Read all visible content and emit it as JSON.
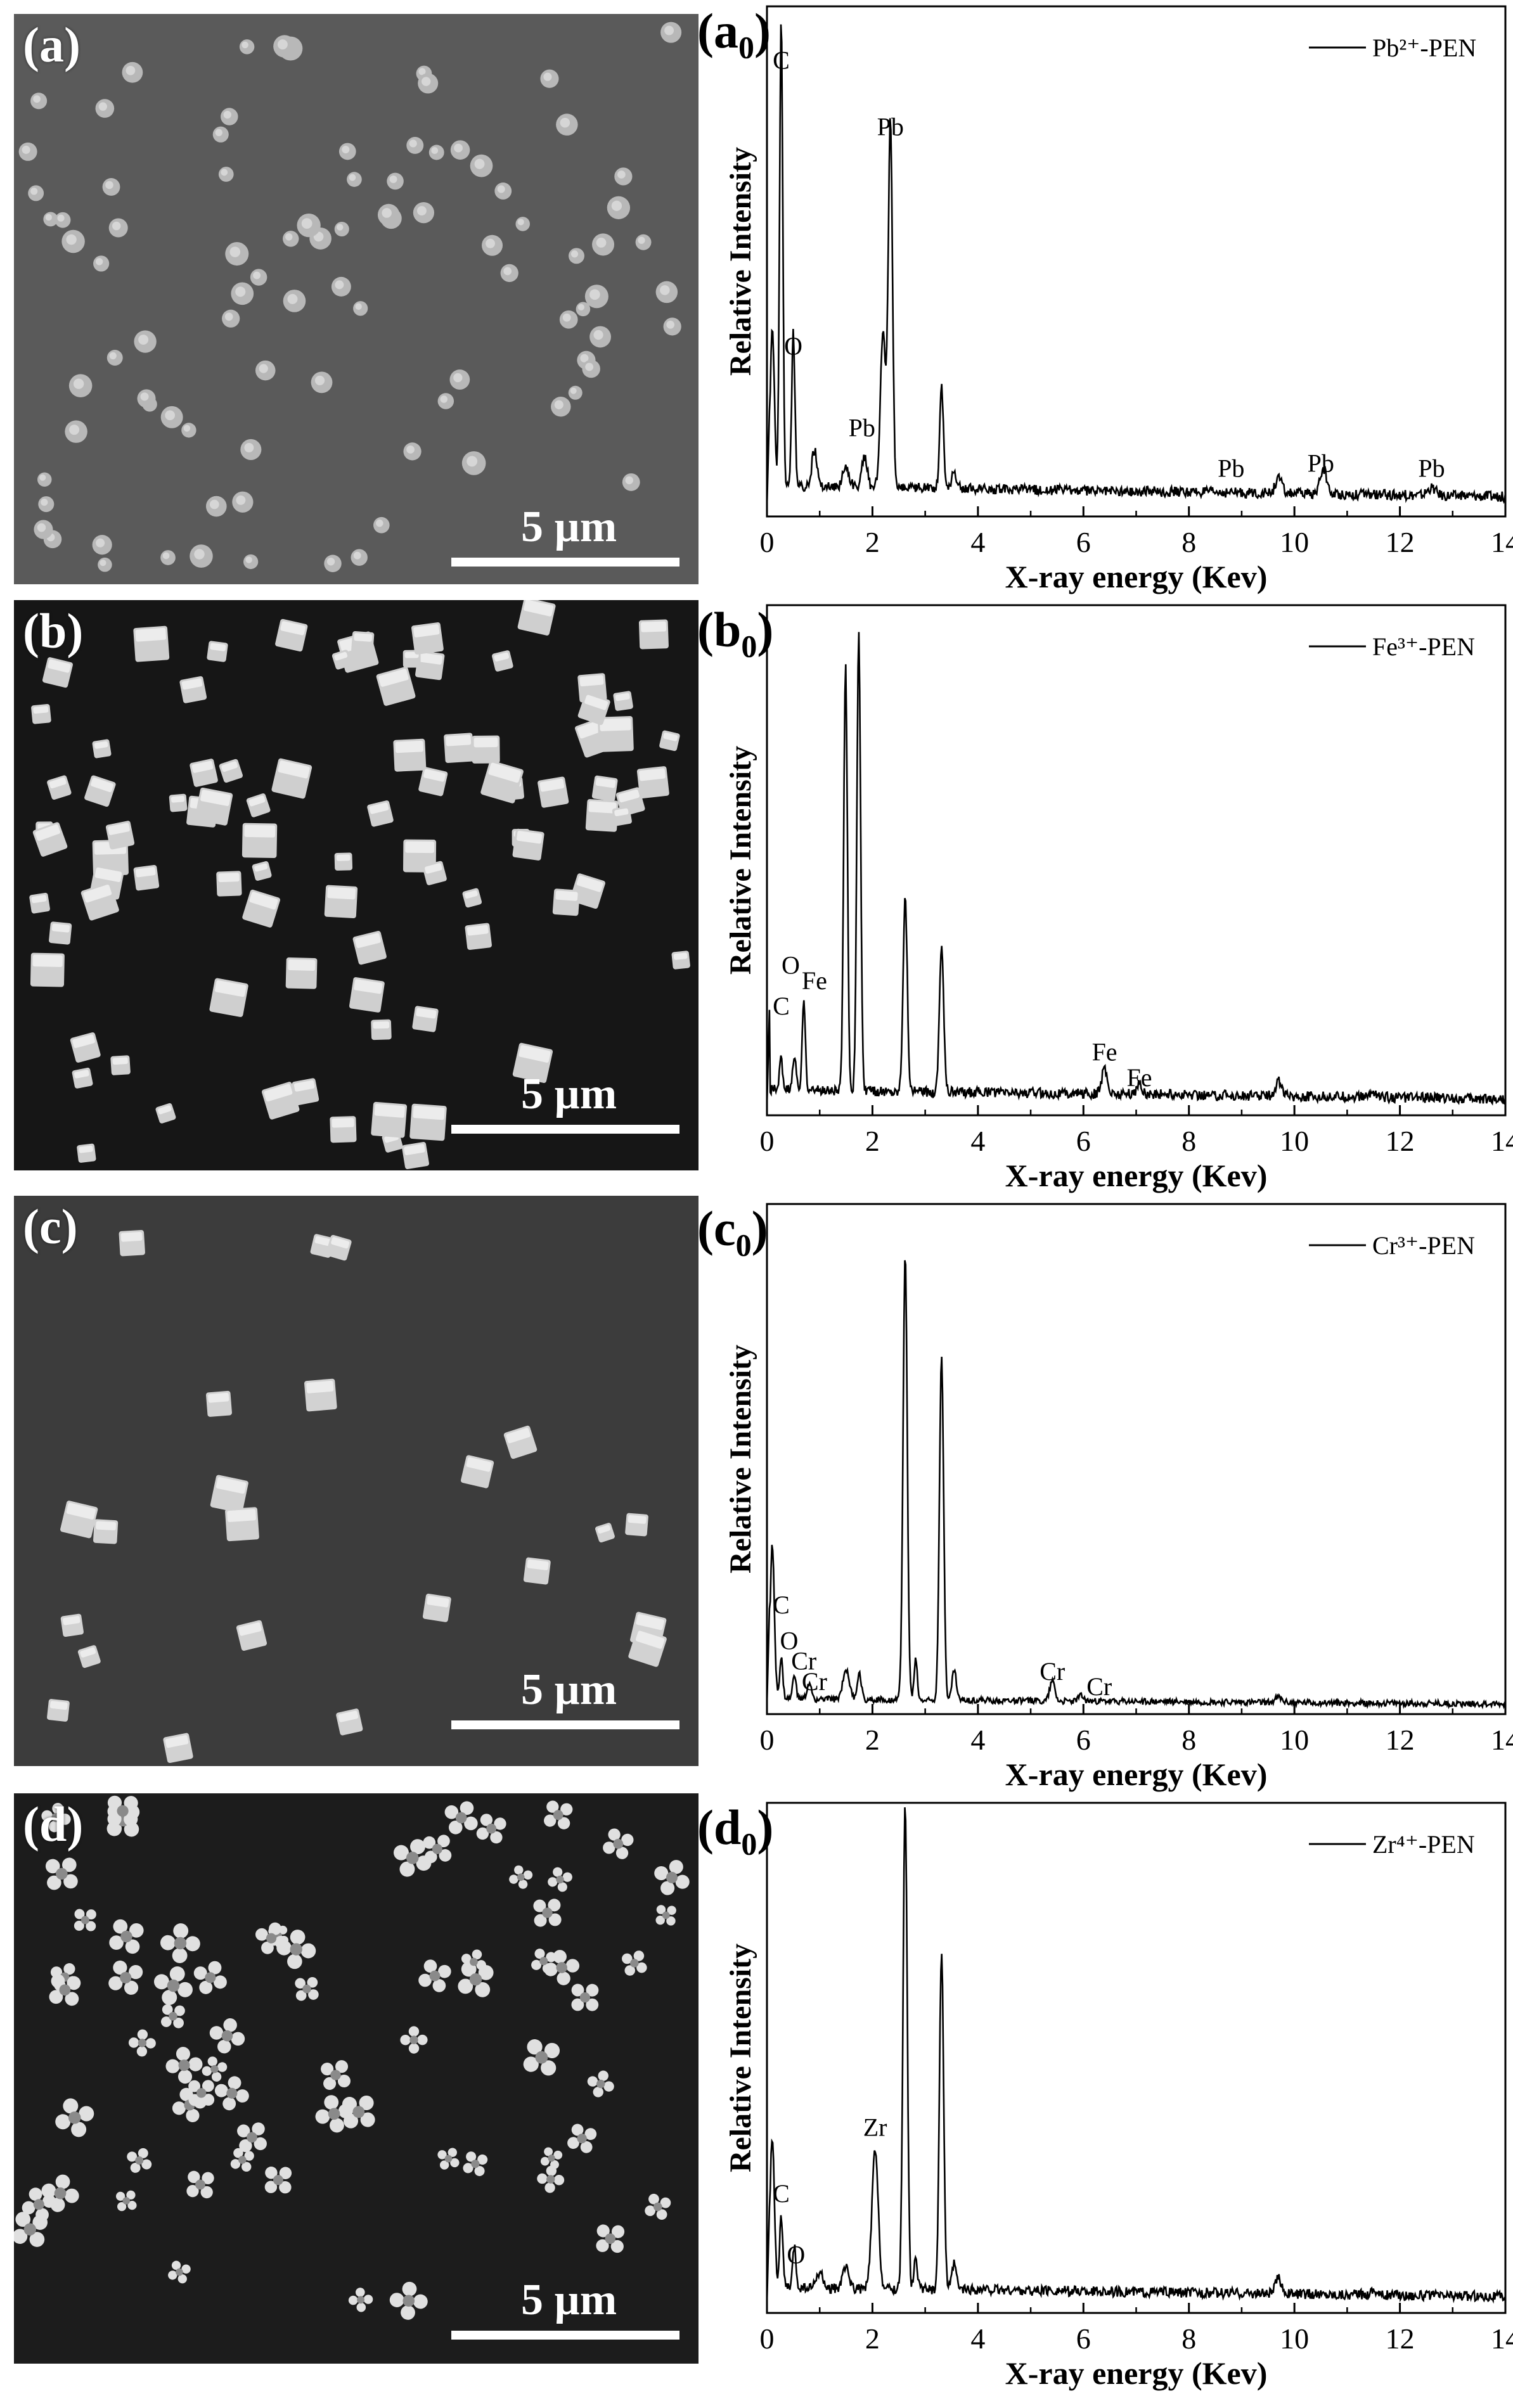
{
  "sem_panels": [
    {
      "id": "a",
      "label": "(a)",
      "scale": "5 µm",
      "particle": "sphere",
      "bg": "#5a5a5a",
      "fg": "#b8b8b8",
      "count": 95
    },
    {
      "id": "b",
      "label": "(b)",
      "scale": "5 µm",
      "particle": "cube",
      "bg": "#161616",
      "fg": "#cfcfcf",
      "count": 95
    },
    {
      "id": "c",
      "label": "(c)",
      "scale": "5 µm",
      "particle": "cube",
      "bg": "#3c3c3c",
      "fg": "#d2d2d2",
      "count": 24
    },
    {
      "id": "d",
      "label": "(d)",
      "scale": "5 µm",
      "particle": "star",
      "bg": "#1c1c1c",
      "fg": "#e0e0e0",
      "count": 70
    }
  ],
  "chart_data": [
    {
      "type": "line",
      "panel_label": "(a",
      "panel_sub": "0",
      "panel_close": ")",
      "xlabel": "X-ray energy (Kev)",
      "ylabel": "Relative Intensity",
      "xlim": [
        0,
        14
      ],
      "xticks": [
        "0",
        "2",
        "4",
        "6",
        "8",
        "10",
        "12",
        "14"
      ],
      "legend": "Pb²⁺-PEN",
      "legend_position": "top-right",
      "baseline": 0.06,
      "peaks": [
        [
          0.1,
          0.3,
          0.04
        ],
        [
          0.27,
          0.92,
          0.03
        ],
        [
          0.5,
          0.3,
          0.03
        ],
        [
          0.9,
          0.07,
          0.05
        ],
        [
          1.5,
          0.04,
          0.06
        ],
        [
          1.85,
          0.06,
          0.05
        ],
        [
          2.2,
          0.3,
          0.05
        ],
        [
          2.34,
          0.72,
          0.04
        ],
        [
          3.31,
          0.2,
          0.035
        ],
        [
          3.55,
          0.03,
          0.05
        ],
        [
          9.7,
          0.03,
          0.06
        ],
        [
          10.55,
          0.05,
          0.06
        ],
        [
          12.6,
          0.015,
          0.08
        ]
      ],
      "noise": 0.01,
      "annotations": [
        {
          "text": "C",
          "x": 0.27,
          "y": 0.86
        },
        {
          "text": "O",
          "x": 0.5,
          "y": 0.3
        },
        {
          "text": "Pb",
          "x": 2.34,
          "y": 0.73
        },
        {
          "text": "Pb",
          "x": 1.8,
          "y": 0.14
        },
        {
          "text": "Pb",
          "x": 8.8,
          "y": 0.06
        },
        {
          "text": "Pb",
          "x": 10.5,
          "y": 0.07
        },
        {
          "text": "Pb",
          "x": 12.6,
          "y": 0.06
        }
      ]
    },
    {
      "type": "line",
      "panel_label": "(b",
      "panel_sub": "0",
      "panel_close": ")",
      "xlabel": "X-ray energy (Kev)",
      "ylabel": "Relative Intensity",
      "xlim": [
        0,
        14
      ],
      "xticks": [
        "0",
        "2",
        "4",
        "6",
        "8",
        "10",
        "12",
        "14"
      ],
      "legend": "Fe³⁺-PEN",
      "legend_position": "top-right",
      "baseline": 0.05,
      "peaks": [
        [
          0.27,
          0.06,
          0.03
        ],
        [
          0.52,
          0.07,
          0.03
        ],
        [
          0.7,
          0.18,
          0.03
        ],
        [
          1.49,
          0.83,
          0.035
        ],
        [
          1.74,
          0.9,
          0.035
        ],
        [
          2.62,
          0.38,
          0.04
        ],
        [
          3.31,
          0.29,
          0.04
        ],
        [
          6.4,
          0.05,
          0.05
        ],
        [
          7.06,
          0.02,
          0.05
        ],
        [
          9.7,
          0.03,
          0.06
        ],
        [
          11.5,
          0.01,
          0.06
        ]
      ],
      "noise": 0.01,
      "annotations": [
        {
          "text": "C",
          "x": 0.27,
          "y": 0.18
        },
        {
          "text": "O",
          "x": 0.45,
          "y": 0.26
        },
        {
          "text": "Fe",
          "x": 0.9,
          "y": 0.23
        },
        {
          "text": "Fe",
          "x": 6.4,
          "y": 0.09
        },
        {
          "text": "Fe",
          "x": 7.06,
          "y": 0.04
        }
      ]
    },
    {
      "type": "line",
      "panel_label": "(c",
      "panel_sub": "0",
      "panel_close": ")",
      "xlabel": "X-ray energy (Kev)",
      "ylabel": "Relative Intensity",
      "xlim": [
        0,
        14
      ],
      "xticks": [
        "0",
        "2",
        "4",
        "6",
        "8",
        "10",
        "12",
        "14"
      ],
      "legend": "Cr³⁺-PEN",
      "legend_position": "top-right",
      "baseline": 0.03,
      "peaks": [
        [
          0.1,
          0.3,
          0.04
        ],
        [
          0.27,
          0.08,
          0.03
        ],
        [
          0.52,
          0.05,
          0.03
        ],
        [
          0.8,
          0.03,
          0.04
        ],
        [
          1.5,
          0.06,
          0.06
        ],
        [
          1.75,
          0.05,
          0.04
        ],
        [
          2.62,
          0.87,
          0.04
        ],
        [
          2.82,
          0.08,
          0.03
        ],
        [
          3.31,
          0.67,
          0.04
        ],
        [
          3.55,
          0.06,
          0.04
        ],
        [
          5.41,
          0.04,
          0.05
        ],
        [
          5.95,
          0.01,
          0.05
        ],
        [
          9.7,
          0.01,
          0.06
        ]
      ],
      "noise": 0.006,
      "annotations": [
        {
          "text": "C",
          "x": 0.27,
          "y": 0.18
        },
        {
          "text": "O",
          "x": 0.42,
          "y": 0.11
        },
        {
          "text": "Cr",
          "x": 0.7,
          "y": 0.07
        },
        {
          "text": "Cr",
          "x": 0.9,
          "y": 0.03
        },
        {
          "text": "Cr",
          "x": 5.41,
          "y": 0.05
        },
        {
          "text": "Cr",
          "x": 6.3,
          "y": 0.02
        }
      ]
    },
    {
      "type": "line",
      "panel_label": "(d",
      "panel_sub": "0",
      "panel_close": ")",
      "xlabel": "X-ray energy (Kev)",
      "ylabel": "Relative Intensity",
      "xlim": [
        0,
        14
      ],
      "xticks": [
        "0",
        "2",
        "4",
        "6",
        "8",
        "10",
        "12",
        "14"
      ],
      "legend": "Zr⁴⁺-PEN",
      "legend_position": "top-right",
      "baseline": 0.05,
      "peaks": [
        [
          0.1,
          0.3,
          0.04
        ],
        [
          0.27,
          0.14,
          0.03
        ],
        [
          0.52,
          0.08,
          0.03
        ],
        [
          1.0,
          0.03,
          0.06
        ],
        [
          1.5,
          0.04,
          0.06
        ],
        [
          2.05,
          0.27,
          0.06
        ],
        [
          2.62,
          0.95,
          0.04
        ],
        [
          2.82,
          0.07,
          0.03
        ],
        [
          3.31,
          0.66,
          0.04
        ],
        [
          3.55,
          0.05,
          0.04
        ],
        [
          9.7,
          0.03,
          0.06
        ],
        [
          11.5,
          0.01,
          0.06
        ]
      ],
      "noise": 0.01,
      "annotations": [
        {
          "text": "C",
          "x": 0.27,
          "y": 0.2
        },
        {
          "text": "O",
          "x": 0.55,
          "y": 0.08
        },
        {
          "text": "Zr",
          "x": 2.05,
          "y": 0.33
        }
      ]
    }
  ]
}
